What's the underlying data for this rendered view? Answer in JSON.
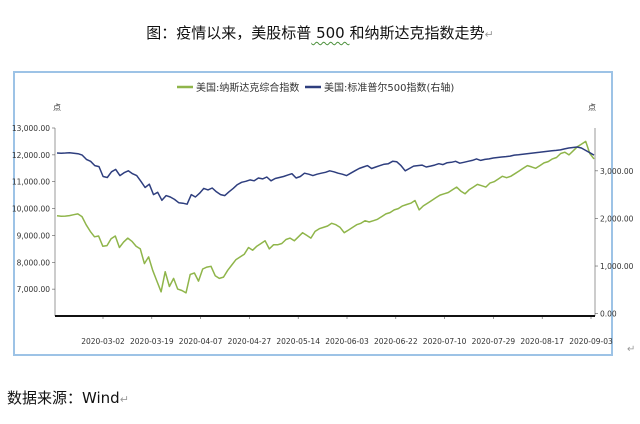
{
  "doc": {
    "title_pre": "图：疫情以来，美股标普",
    "title_squiggle": " 500 ",
    "title_post": "和纳斯达克指数走势",
    "para_mark": "↵",
    "source": "数据来源：Wind"
  },
  "chart_data": {
    "type": "line",
    "unit_label": "点",
    "legend_position": "top-center",
    "series": [
      {
        "name": "美国:纳斯达克综合指数",
        "axis": "left",
        "color": "#8fb54a",
        "values": [
          9730,
          9715,
          9720,
          9740,
          9770,
          9800,
          9700,
          9400,
          9150,
          8950,
          8980,
          8600,
          8620,
          8880,
          8980,
          8550,
          8750,
          8900,
          8780,
          8600,
          8500,
          7950,
          8200,
          7700,
          7300,
          6900,
          7650,
          7100,
          7400,
          7000,
          6950,
          6860,
          7550,
          7600,
          7300,
          7750,
          7820,
          7850,
          7500,
          7400,
          7450,
          7700,
          7900,
          8100,
          8200,
          8300,
          8550,
          8450,
          8600,
          8700,
          8800,
          8500,
          8650,
          8650,
          8700,
          8850,
          8900,
          8800,
          8950,
          9100,
          9000,
          8900,
          9150,
          9250,
          9300,
          9350,
          9450,
          9400,
          9300,
          9100,
          9200,
          9300,
          9400,
          9450,
          9550,
          9500,
          9550,
          9600,
          9700,
          9800,
          9850,
          9950,
          10000,
          10100,
          10150,
          10200,
          10300,
          9950,
          10100,
          10200,
          10300,
          10400,
          10500,
          10550,
          10600,
          10700,
          10800,
          10650,
          10550,
          10700,
          10800,
          10900,
          10850,
          10800,
          10950,
          11000,
          11100,
          11200,
          11150,
          11200,
          11300,
          11400,
          11500,
          11600,
          11550,
          11500,
          11600,
          11700,
          11750,
          11850,
          11900,
          12050,
          12100,
          12000,
          12150,
          12300,
          12400,
          12500,
          12050,
          11850
        ]
      },
      {
        "name": "美国:标准普尔500指数(右轴)",
        "axis": "right",
        "color": "#2e3e7e",
        "values": [
          3375,
          3370,
          3375,
          3380,
          3370,
          3360,
          3330,
          3240,
          3200,
          3110,
          3090,
          2880,
          2860,
          2980,
          3030,
          2900,
          2960,
          3000,
          2940,
          2900,
          2780,
          2650,
          2720,
          2500,
          2550,
          2380,
          2480,
          2450,
          2400,
          2330,
          2320,
          2300,
          2500,
          2450,
          2530,
          2630,
          2600,
          2640,
          2560,
          2500,
          2480,
          2560,
          2630,
          2710,
          2760,
          2780,
          2810,
          2790,
          2850,
          2830,
          2870,
          2790,
          2840,
          2860,
          2880,
          2910,
          2940,
          2850,
          2880,
          2950,
          2930,
          2900,
          2930,
          2950,
          2970,
          3000,
          2980,
          2950,
          2930,
          2900,
          2950,
          3000,
          3050,
          3080,
          3110,
          3050,
          3080,
          3110,
          3140,
          3150,
          3200,
          3190,
          3110,
          3000,
          3050,
          3100,
          3110,
          3120,
          3080,
          3100,
          3120,
          3150,
          3130,
          3170,
          3180,
          3200,
          3160,
          3180,
          3200,
          3220,
          3250,
          3220,
          3240,
          3250,
          3270,
          3280,
          3290,
          3300,
          3310,
          3330,
          3340,
          3350,
          3360,
          3370,
          3380,
          3390,
          3400,
          3410,
          3420,
          3430,
          3440,
          3460,
          3480,
          3490,
          3500,
          3480,
          3430,
          3380,
          3330
        ]
      }
    ],
    "x_tick_labels": [
      "2020-03-02",
      "2020-03-19",
      "2020-04-07",
      "2020-04-27",
      "2020-05-14",
      "2020-06-03",
      "2020-06-22",
      "2020-07-10",
      "2020-07-29",
      "2020-08-17",
      "2020-09-03"
    ],
    "y_left": {
      "min": 6000,
      "max": 13000,
      "ticks": [
        "13,000.00",
        "12,000.00",
        "11,000.00",
        "10,000.00",
        "9,000.00",
        "8,000.00",
        "7,000.00"
      ]
    },
    "y_right": {
      "min": -50,
      "max": 3900,
      "ticks": [
        "3,000.00",
        "2,000.00",
        "1,000.00",
        "0.00"
      ]
    },
    "grid": false
  }
}
